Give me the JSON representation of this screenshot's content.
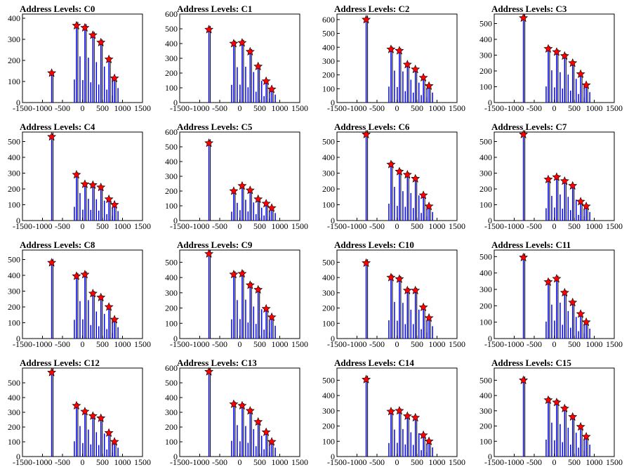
{
  "chart_data": {
    "type": "bar",
    "x_ticks": [
      -1500,
      -1000,
      -500,
      0,
      500,
      1000,
      1500
    ],
    "x_tick_labels": [
      "-1500",
      "-1000",
      "-500",
      "0",
      "500",
      "1000",
      "1500"
    ],
    "xlim": [
      -1500,
      1500
    ],
    "marker_color": "#ff0000",
    "bar_color": "#0000ff",
    "panels": [
      {
        "title": "Address Levels: C0",
        "ylim": [
          0,
          420
        ],
        "yticks": [
          0,
          100,
          200,
          300,
          400
        ],
        "peaks": [
          {
            "x": -770,
            "y": 140
          },
          {
            "x": -150,
            "y": 365
          },
          {
            "x": 60,
            "y": 355
          },
          {
            "x": 260,
            "y": 320
          },
          {
            "x": 460,
            "y": 285
          },
          {
            "x": 660,
            "y": 205
          },
          {
            "x": 800,
            "y": 115
          }
        ]
      },
      {
        "title": "Address Levels: C1",
        "ylim": [
          0,
          600
        ],
        "yticks": [
          0,
          100,
          200,
          300,
          400,
          500,
          600
        ],
        "peaks": [
          {
            "x": -770,
            "y": 495
          },
          {
            "x": -150,
            "y": 400
          },
          {
            "x": 60,
            "y": 405
          },
          {
            "x": 260,
            "y": 345
          },
          {
            "x": 460,
            "y": 245
          },
          {
            "x": 660,
            "y": 145
          },
          {
            "x": 800,
            "y": 90
          }
        ]
      },
      {
        "title": "Address Levels: C2",
        "ylim": [
          0,
          640
        ],
        "yticks": [
          0,
          100,
          200,
          300,
          400,
          500,
          600
        ],
        "peaks": [
          {
            "x": -770,
            "y": 600
          },
          {
            "x": -150,
            "y": 385
          },
          {
            "x": 60,
            "y": 375
          },
          {
            "x": 260,
            "y": 275
          },
          {
            "x": 460,
            "y": 240
          },
          {
            "x": 660,
            "y": 180
          },
          {
            "x": 800,
            "y": 120
          }
        ]
      },
      {
        "title": "Address Levels: C3",
        "ylim": [
          0,
          560
        ],
        "yticks": [
          0,
          100,
          200,
          300,
          400,
          500
        ],
        "peaks": [
          {
            "x": -770,
            "y": 535
          },
          {
            "x": -150,
            "y": 340
          },
          {
            "x": 60,
            "y": 320
          },
          {
            "x": 260,
            "y": 295
          },
          {
            "x": 460,
            "y": 250
          },
          {
            "x": 660,
            "y": 180
          },
          {
            "x": 800,
            "y": 110
          }
        ]
      },
      {
        "title": "Address Levels: C4",
        "ylim": [
          0,
          560
        ],
        "yticks": [
          0,
          100,
          200,
          300,
          400,
          500
        ],
        "peaks": [
          {
            "x": -770,
            "y": 530
          },
          {
            "x": -150,
            "y": 290
          },
          {
            "x": 60,
            "y": 230
          },
          {
            "x": 260,
            "y": 225
          },
          {
            "x": 460,
            "y": 210
          },
          {
            "x": 660,
            "y": 135
          },
          {
            "x": 800,
            "y": 100
          }
        ]
      },
      {
        "title": "Address Levels: C5",
        "ylim": [
          0,
          600
        ],
        "yticks": [
          0,
          100,
          200,
          300,
          400,
          500,
          600
        ],
        "peaks": [
          {
            "x": -770,
            "y": 525
          },
          {
            "x": -150,
            "y": 200
          },
          {
            "x": 60,
            "y": 235
          },
          {
            "x": 260,
            "y": 205
          },
          {
            "x": 460,
            "y": 145
          },
          {
            "x": 660,
            "y": 115
          },
          {
            "x": 800,
            "y": 85
          }
        ]
      },
      {
        "title": "Address Levels: C6",
        "ylim": [
          0,
          560
        ],
        "yticks": [
          0,
          100,
          200,
          300,
          400,
          500
        ],
        "peaks": [
          {
            "x": -770,
            "y": 545
          },
          {
            "x": -150,
            "y": 355
          },
          {
            "x": 60,
            "y": 310
          },
          {
            "x": 260,
            "y": 290
          },
          {
            "x": 460,
            "y": 265
          },
          {
            "x": 660,
            "y": 160
          },
          {
            "x": 800,
            "y": 90
          }
        ]
      },
      {
        "title": "Address Levels: C7",
        "ylim": [
          0,
          560
        ],
        "yticks": [
          0,
          100,
          200,
          300,
          400,
          500
        ],
        "peaks": [
          {
            "x": -770,
            "y": 545
          },
          {
            "x": -150,
            "y": 260
          },
          {
            "x": 60,
            "y": 275
          },
          {
            "x": 260,
            "y": 250
          },
          {
            "x": 460,
            "y": 220
          },
          {
            "x": 660,
            "y": 120
          },
          {
            "x": 800,
            "y": 90
          }
        ]
      },
      {
        "title": "Address Levels: C8",
        "ylim": [
          0,
          560
        ],
        "yticks": [
          0,
          100,
          200,
          300,
          400,
          500
        ],
        "peaks": [
          {
            "x": -770,
            "y": 480
          },
          {
            "x": -150,
            "y": 395
          },
          {
            "x": 60,
            "y": 405
          },
          {
            "x": 260,
            "y": 285
          },
          {
            "x": 460,
            "y": 260
          },
          {
            "x": 660,
            "y": 200
          },
          {
            "x": 800,
            "y": 120
          }
        ]
      },
      {
        "title": "Address Levels: C9",
        "ylim": [
          0,
          580
        ],
        "yticks": [
          0,
          100,
          200,
          300,
          400,
          500
        ],
        "peaks": [
          {
            "x": -770,
            "y": 555
          },
          {
            "x": -150,
            "y": 420
          },
          {
            "x": 60,
            "y": 425
          },
          {
            "x": 260,
            "y": 350
          },
          {
            "x": 460,
            "y": 320
          },
          {
            "x": 660,
            "y": 195
          },
          {
            "x": 800,
            "y": 140
          }
        ]
      },
      {
        "title": "Address Levels: C10",
        "ylim": [
          0,
          580
        ],
        "yticks": [
          0,
          100,
          200,
          300,
          400,
          500
        ],
        "peaks": [
          {
            "x": -770,
            "y": 495
          },
          {
            "x": -150,
            "y": 400
          },
          {
            "x": 60,
            "y": 390
          },
          {
            "x": 260,
            "y": 315
          },
          {
            "x": 460,
            "y": 315
          },
          {
            "x": 660,
            "y": 205
          },
          {
            "x": 800,
            "y": 135
          }
        ]
      },
      {
        "title": "Address Levels: C11",
        "ylim": [
          0,
          540
        ],
        "yticks": [
          0,
          100,
          200,
          300,
          400,
          500
        ],
        "peaks": [
          {
            "x": -770,
            "y": 495
          },
          {
            "x": -150,
            "y": 345
          },
          {
            "x": 60,
            "y": 365
          },
          {
            "x": 260,
            "y": 280
          },
          {
            "x": 460,
            "y": 220
          },
          {
            "x": 660,
            "y": 150
          },
          {
            "x": 800,
            "y": 100
          }
        ]
      },
      {
        "title": "Address Levels: C12",
        "ylim": [
          0,
          600
        ],
        "yticks": [
          0,
          100,
          200,
          300,
          400,
          500
        ],
        "peaks": [
          {
            "x": -770,
            "y": 570
          },
          {
            "x": -150,
            "y": 345
          },
          {
            "x": 60,
            "y": 305
          },
          {
            "x": 260,
            "y": 275
          },
          {
            "x": 460,
            "y": 260
          },
          {
            "x": 660,
            "y": 160
          },
          {
            "x": 800,
            "y": 100
          }
        ]
      },
      {
        "title": "Address Levels: C13",
        "ylim": [
          0,
          600
        ],
        "yticks": [
          0,
          100,
          200,
          300,
          400,
          500,
          600
        ],
        "peaks": [
          {
            "x": -770,
            "y": 575
          },
          {
            "x": -150,
            "y": 355
          },
          {
            "x": 60,
            "y": 345
          },
          {
            "x": 260,
            "y": 310
          },
          {
            "x": 460,
            "y": 235
          },
          {
            "x": 660,
            "y": 165
          },
          {
            "x": 800,
            "y": 100
          }
        ]
      },
      {
        "title": "Address Levels: C14",
        "ylim": [
          0,
          580
        ],
        "yticks": [
          0,
          100,
          200,
          300,
          400,
          500
        ],
        "peaks": [
          {
            "x": -770,
            "y": 505
          },
          {
            "x": -150,
            "y": 295
          },
          {
            "x": 60,
            "y": 300
          },
          {
            "x": 260,
            "y": 265
          },
          {
            "x": 460,
            "y": 255
          },
          {
            "x": 660,
            "y": 140
          },
          {
            "x": 800,
            "y": 100
          }
        ]
      },
      {
        "title": "Address Levels: C15",
        "ylim": [
          0,
          580
        ],
        "yticks": [
          0,
          100,
          200,
          300,
          400,
          500
        ],
        "peaks": [
          {
            "x": -770,
            "y": 500
          },
          {
            "x": -150,
            "y": 370
          },
          {
            "x": 60,
            "y": 355
          },
          {
            "x": 260,
            "y": 315
          },
          {
            "x": 460,
            "y": 260
          },
          {
            "x": 660,
            "y": 195
          },
          {
            "x": 800,
            "y": 130
          }
        ]
      }
    ]
  }
}
